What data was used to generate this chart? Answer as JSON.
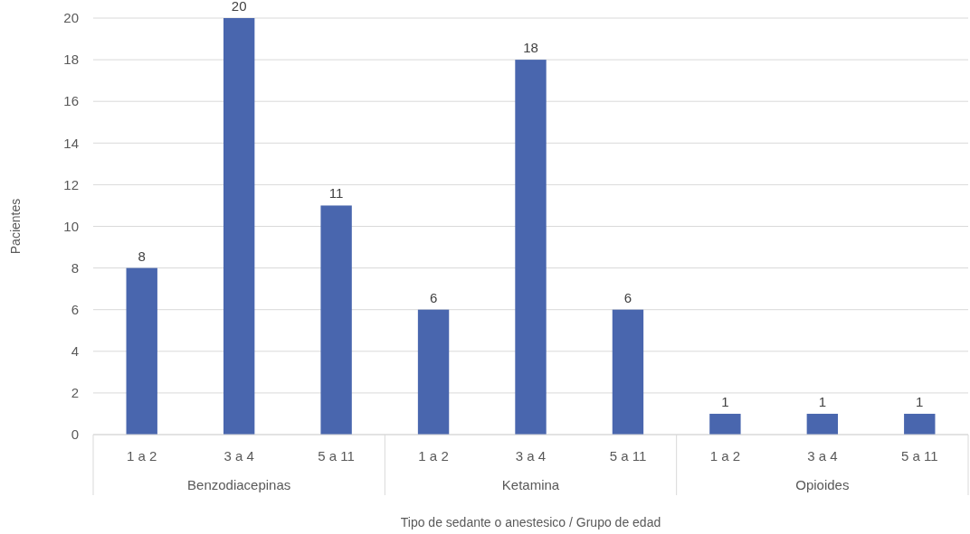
{
  "chart_data": {
    "type": "bar",
    "xlabel": "Tipo de sedante o anestesico / Grupo de edad",
    "ylabel": "Pacientes",
    "categories": [
      "1 a 2",
      "3 a 4",
      "5 a 11",
      "1 a 2",
      "3 a 4",
      "5 a 11",
      "1 a 2",
      "3 a 4",
      "5 a 11"
    ],
    "values": [
      8,
      20,
      11,
      6,
      18,
      6,
      1,
      1,
      1
    ],
    "color": "#4966ae",
    "ylim": [
      0,
      20
    ],
    "yticks": [
      0,
      2,
      4,
      6,
      8,
      10,
      12,
      14,
      16,
      18,
      20
    ],
    "grid": "y",
    "data_labels": true,
    "annotations": [
      "Benzodiacepinas",
      "Ketamina",
      "Opioides"
    ]
  }
}
